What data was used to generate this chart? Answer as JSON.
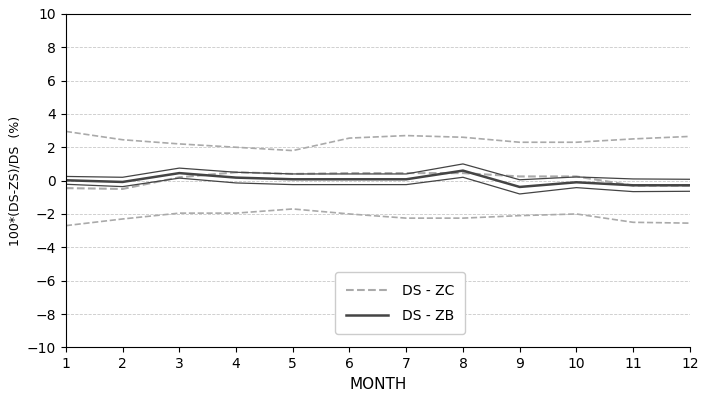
{
  "months": [
    1,
    2,
    3,
    4,
    5,
    6,
    7,
    8,
    9,
    10,
    11,
    12
  ],
  "zc_mean": [
    -0.45,
    -0.5,
    0.2,
    0.5,
    0.4,
    0.45,
    0.45,
    0.45,
    0.25,
    0.25,
    -0.3,
    -0.3
  ],
  "zc_upper": [
    2.95,
    2.45,
    2.2,
    2.0,
    1.8,
    2.55,
    2.7,
    2.6,
    2.3,
    2.3,
    2.5,
    2.65
  ],
  "zc_lower": [
    -2.7,
    -2.3,
    -1.95,
    -1.95,
    -1.7,
    -2.0,
    -2.25,
    -2.25,
    -2.1,
    -2.0,
    -2.5,
    -2.55
  ],
  "zb_mean": [
    0.02,
    -0.08,
    0.45,
    0.18,
    0.08,
    0.08,
    0.08,
    0.6,
    -0.38,
    -0.1,
    -0.28,
    -0.28
  ],
  "zb_upper": [
    0.25,
    0.2,
    0.75,
    0.5,
    0.4,
    0.4,
    0.4,
    1.0,
    0.05,
    0.22,
    0.1,
    0.08
  ],
  "zb_lower": [
    -0.22,
    -0.36,
    0.15,
    -0.14,
    -0.24,
    -0.24,
    -0.24,
    0.2,
    -0.8,
    -0.42,
    -0.66,
    -0.64
  ],
  "ylabel": "100*(DS-ZS)/DS  (%)",
  "xlabel": "MONTH",
  "ylim": [
    -10,
    10
  ],
  "yticks": [
    -10,
    -8,
    -6,
    -4,
    -2,
    0,
    2,
    4,
    6,
    8,
    10
  ],
  "xticks": [
    1,
    2,
    3,
    4,
    5,
    6,
    7,
    8,
    9,
    10,
    11,
    12
  ],
  "legend_zc": "DS - ZC",
  "legend_zb": "DS - ZB",
  "line_color_zc": "#aaaaaa",
  "line_color_zb": "#444444",
  "grid_color": "#bbbbbb",
  "bg_color": "#ffffff",
  "fig_width": 7.07,
  "fig_height": 4.0,
  "dpi": 100
}
